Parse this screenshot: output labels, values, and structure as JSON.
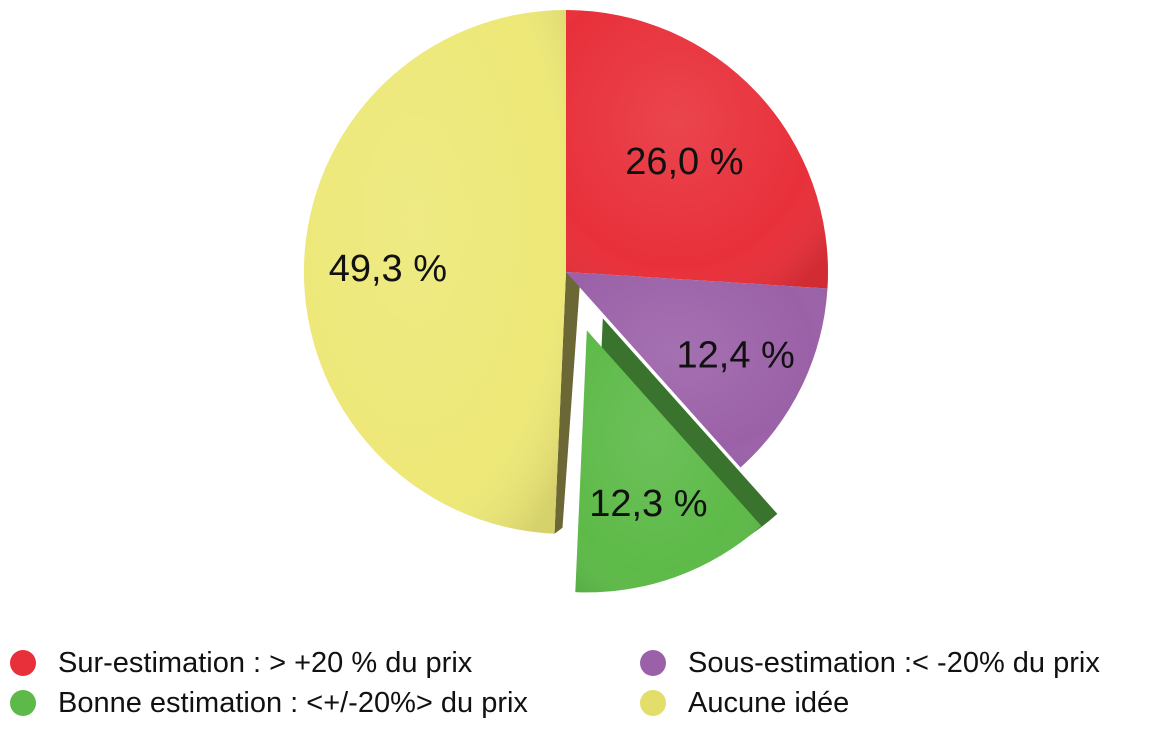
{
  "chart_data": {
    "type": "pie",
    "slices": [
      {
        "label": "Sur-estimation : > +20 % du prix",
        "value": 26.0,
        "display": "26,0 %",
        "color": "#E8303A"
      },
      {
        "label": "Sous-estimation :< -20% du prix",
        "value": 12.4,
        "display": "12,4 %",
        "color": "#9B61A8",
        "exploded": false
      },
      {
        "label": "Bonne estimation : <+/-20%> du prix",
        "value": 12.3,
        "display": "12,3 %",
        "color": "#5DBA48",
        "exploded": true
      },
      {
        "label": "Aucune idée",
        "value": 49.3,
        "display": "49,3 %",
        "color": "#EDE877"
      }
    ],
    "legend_position": "bottom"
  },
  "legend": {
    "items": [
      {
        "label": "Sur-estimation : > +20 % du prix",
        "color": "#E8303A"
      },
      {
        "label": "Sous-estimation :< -20% du prix",
        "color": "#9B61A8"
      },
      {
        "label": "Bonne estimation : <+/-20%> du prix",
        "color": "#5DBA48"
      },
      {
        "label": "Aucune idée",
        "color": "#E3DE6A"
      }
    ]
  }
}
